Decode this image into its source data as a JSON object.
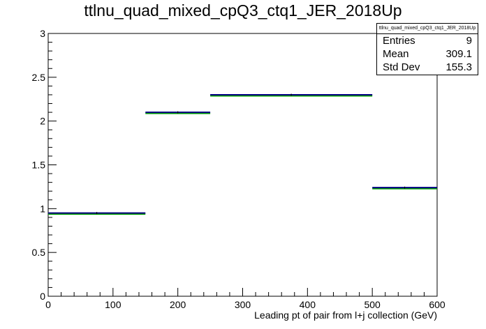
{
  "chart_data": {
    "type": "histogram",
    "title": "ttlnu_quad_mixed_cpQ3_ctq1_JER_2018Up",
    "xlabel": "Leading pt of pair from l+j collection (GeV)",
    "ylabel": "",
    "xlim": [
      0,
      600
    ],
    "ylim": [
      0,
      3
    ],
    "x_ticks": [
      "0",
      "100",
      "200",
      "300",
      "400",
      "500",
      "600"
    ],
    "y_ticks": [
      "0",
      "0.5",
      "1",
      "1.5",
      "2",
      "2.5",
      "3"
    ],
    "bins": [
      {
        "x0": 0,
        "x1": 150,
        "value": 0.95
      },
      {
        "x0": 150,
        "x1": 250,
        "value": 2.1
      },
      {
        "x0": 250,
        "x1": 500,
        "value": 2.3
      },
      {
        "x0": 500,
        "x1": 600,
        "value": 1.24
      }
    ],
    "line_color": "#000080",
    "shadow_color": "#00a000",
    "stats": {
      "name": "ttlnu_quad_mixed_cpQ3_ctq1_JER_2018Up",
      "entries_label": "Entries",
      "entries_value": "9",
      "mean_label": "Mean",
      "mean_value": "309.1",
      "stddev_label": "Std Dev",
      "stddev_value": "155.3"
    }
  }
}
